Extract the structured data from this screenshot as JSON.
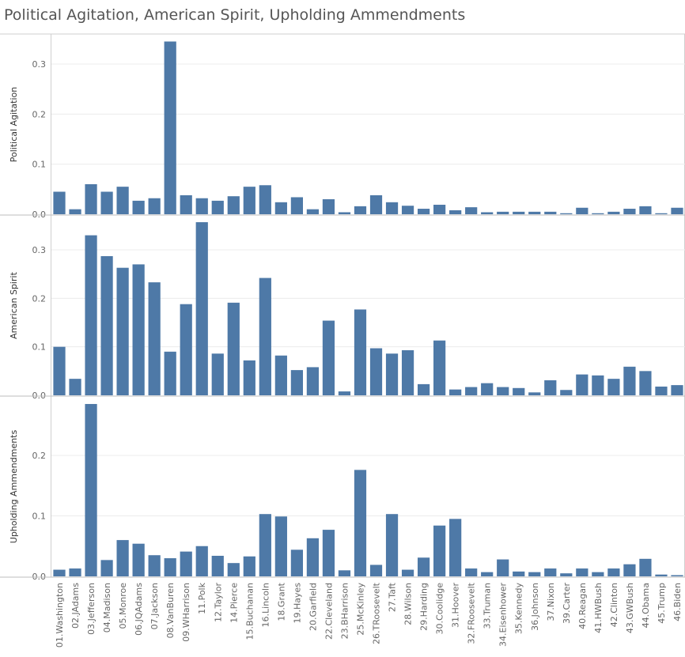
{
  "title": "Political Agitation, American Spirit, Upholding Ammendments",
  "chart_data": {
    "type": "bar",
    "title": "Political Agitation, American Spirit, Upholding Ammendments",
    "categories": [
      "01.Washington",
      "02.JAdams",
      "03.Jefferson",
      "04.Madison",
      "05.Monroe",
      "06.JQAdams",
      "07.Jackson",
      "08.VanBuren",
      "09.WHarrison",
      "11.Polk",
      "12.Taylor",
      "14.Pierce",
      "15.Buchanan",
      "16.Lincoln",
      "18.Grant",
      "19.Hayes",
      "20.Garfield",
      "22.Cleveland",
      "23.BHarrison",
      "25.McKinley",
      "26.TRoosevelt",
      "27.Taft",
      "28.Wilson",
      "29.Harding",
      "30.Coolidge",
      "31.Hoover",
      "32.FRoosevelt",
      "33.Truman",
      "34.Eisenhower",
      "35.Kennedy",
      "36.Johnson",
      "37.Nixon",
      "39.Carter",
      "40.Reagan",
      "41.HWBush",
      "42.Clinton",
      "43.GWBush",
      "44.Obama",
      "45.Trump",
      "46.Biden"
    ],
    "bar_color": "#4e79a7",
    "grid": true,
    "panels": [
      {
        "ylabel": "Political Agitation",
        "ylim": [
          0,
          0.35
        ],
        "ticks": [
          0.0,
          0.1,
          0.2,
          0.3
        ],
        "tick_labels": [
          "0.0",
          "0.1",
          "0.2",
          "0.3"
        ],
        "values": [
          0.045,
          0.01,
          0.06,
          0.045,
          0.055,
          0.027,
          0.032,
          0.345,
          0.038,
          0.032,
          0.027,
          0.036,
          0.055,
          0.058,
          0.024,
          0.034,
          0.01,
          0.03,
          0.004,
          0.016,
          0.038,
          0.024,
          0.017,
          0.011,
          0.019,
          0.008,
          0.014,
          0.004,
          0.005,
          0.005,
          0.005,
          0.005,
          0.002,
          0.013,
          0.002,
          0.005,
          0.011,
          0.016,
          0.002,
          0.013
        ]
      },
      {
        "ylabel": "American Spirit",
        "ylim": [
          0,
          0.35
        ],
        "ticks": [
          0.0,
          0.1,
          0.2,
          0.3
        ],
        "tick_labels": [
          "0.0",
          "0.1",
          "0.2",
          "0.3"
        ],
        "values": [
          0.1,
          0.034,
          0.33,
          0.287,
          0.263,
          0.27,
          0.233,
          0.09,
          0.188,
          0.357,
          0.086,
          0.191,
          0.072,
          0.242,
          0.082,
          0.052,
          0.058,
          0.154,
          0.008,
          0.177,
          0.097,
          0.086,
          0.093,
          0.023,
          0.113,
          0.012,
          0.017,
          0.025,
          0.017,
          0.015,
          0.006,
          0.031,
          0.011,
          0.043,
          0.041,
          0.034,
          0.059,
          0.05,
          0.018,
          0.021
        ]
      },
      {
        "ylabel": "Upholding Ammendments",
        "ylim": [
          0,
          0.28
        ],
        "ticks": [
          0.0,
          0.1,
          0.2
        ],
        "tick_labels": [
          "0.0",
          "0.1",
          "0.2"
        ],
        "values": [
          0.011,
          0.013,
          0.285,
          0.027,
          0.06,
          0.054,
          0.035,
          0.03,
          0.041,
          0.05,
          0.034,
          0.022,
          0.033,
          0.103,
          0.099,
          0.044,
          0.063,
          0.077,
          0.01,
          0.176,
          0.019,
          0.103,
          0.011,
          0.031,
          0.084,
          0.095,
          0.013,
          0.007,
          0.028,
          0.008,
          0.007,
          0.013,
          0.005,
          0.013,
          0.007,
          0.013,
          0.02,
          0.029,
          0.003,
          0.002
        ]
      }
    ]
  }
}
